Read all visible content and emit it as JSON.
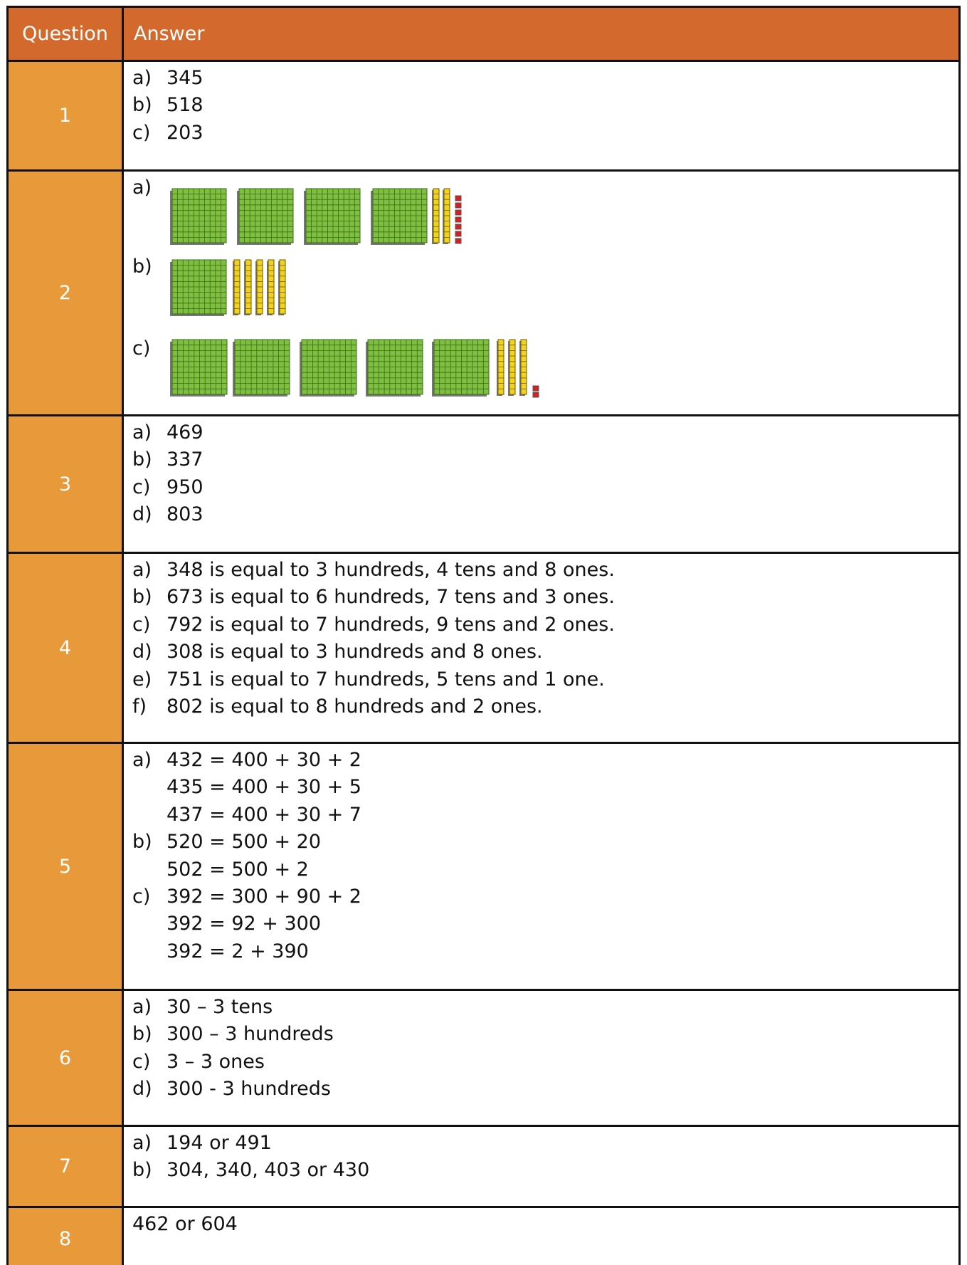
{
  "table": {
    "header": [
      "Question",
      "Answer"
    ],
    "rows": [
      {
        "question": "1",
        "answers": [
          {
            "label": "a)",
            "text": "345"
          },
          {
            "label": "b)",
            "text": "518"
          },
          {
            "label": "c)",
            "text": "203"
          }
        ]
      },
      {
        "question": "2",
        "answers": [
          {
            "label": "a)"
          },
          {
            "label": "b)"
          },
          {
            "label": "c)"
          }
        ]
      },
      {
        "question": "3",
        "answers": [
          {
            "label": "a)",
            "text": "469"
          },
          {
            "label": "b)",
            "text": "337"
          },
          {
            "label": "c)",
            "text": "950"
          },
          {
            "label": "d)",
            "text": "803"
          }
        ]
      },
      {
        "question": "4",
        "answers": [
          {
            "label": "a)",
            "text": "348 is equal to 3 hundreds, 4 tens and 8 ones."
          },
          {
            "label": "b)",
            "text": "673 is equal to 6 hundreds, 7 tens and 3 ones."
          },
          {
            "label": "c)",
            "text": "792 is equal to 7 hundreds, 9 tens and 2 ones."
          },
          {
            "label": "d)",
            "text": "308 is equal to 3 hundreds and 8 ones."
          },
          {
            "label": "e)",
            "text": "751 is equal to 7 hundreds, 5 tens and 1 one."
          },
          {
            "label": "f)",
            "text": "802 is equal to 8 hundreds and 2 ones."
          }
        ]
      },
      {
        "question": "5",
        "answers": [
          {
            "label": "a)",
            "text": "432 = 400 + 30 + 2"
          },
          {
            "text": "435 = 400 + 30 + 5"
          },
          {
            "text": "437 = 400 + 30 + 7"
          },
          {
            "label": "b)",
            "text": "520 = 500 + 20"
          },
          {
            "text": "502 = 500 + 2"
          },
          {
            "label": "c)",
            "text": "392 = 300 + 90 + 2"
          },
          {
            "text": "392 = 92 + 300"
          },
          {
            "text": "392 = 2 + 390"
          }
        ]
      },
      {
        "question": "6",
        "answers": [
          {
            "label": "a)",
            "text": "30 – 3 tens"
          },
          {
            "label": "b)",
            "text": "300 – 3 hundreds"
          },
          {
            "label": "c)",
            "text": "3 – 3 ones"
          },
          {
            "label": "d)",
            "text": "300 - 3 hundreds"
          }
        ]
      },
      {
        "question": "7",
        "answers": [
          {
            "label": "a)",
            "text": "194 or 491"
          },
          {
            "label": "b)",
            "text": "304, 340, 403 or 430"
          }
        ]
      },
      {
        "question": "8",
        "answers": [
          {
            "text": "462 or 604"
          }
        ]
      }
    ]
  }
}
